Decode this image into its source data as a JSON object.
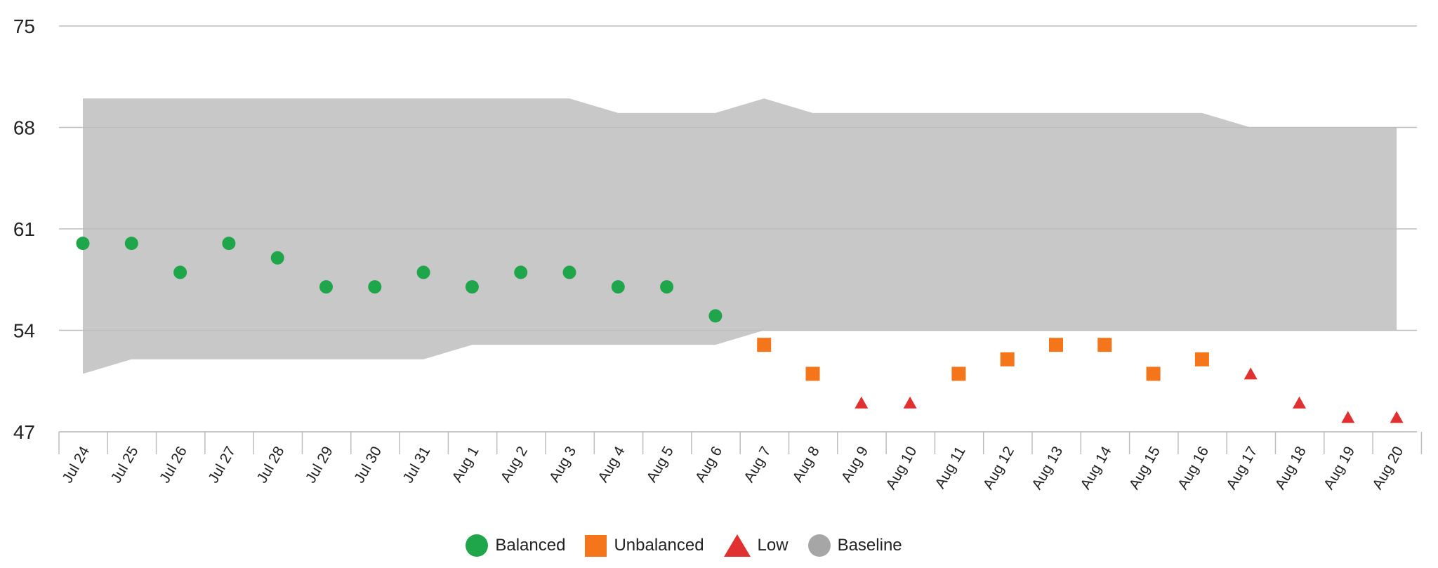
{
  "chart_data": {
    "type": "scatter",
    "title": "",
    "xlabel": "",
    "ylabel": "",
    "ylim": [
      47,
      75
    ],
    "yticks": [
      47,
      54,
      61,
      68,
      75
    ],
    "grid": true,
    "legend_position": "bottom",
    "categories": [
      "Jul 24",
      "Jul 25",
      "Jul 26",
      "Jul 27",
      "Jul 28",
      "Jul 29",
      "Jul 30",
      "Jul 31",
      "Aug 1",
      "Aug 2",
      "Aug 3",
      "Aug 4",
      "Aug 5",
      "Aug 6",
      "Aug 7",
      "Aug 8",
      "Aug 9",
      "Aug 10",
      "Aug 11",
      "Aug 12",
      "Aug 13",
      "Aug 14",
      "Aug 15",
      "Aug 16",
      "Aug 17",
      "Aug 18",
      "Aug 19",
      "Aug 20"
    ],
    "baseline": {
      "name": "Baseline",
      "color": "#c8c8c8",
      "upper": [
        70,
        70,
        70,
        70,
        70,
        70,
        70,
        70,
        70,
        70,
        70,
        69,
        69,
        69,
        70,
        69,
        69,
        69,
        69,
        69,
        69,
        69,
        69,
        69,
        68,
        68,
        68,
        68
      ],
      "lower": [
        51,
        52,
        52,
        52,
        52,
        52,
        52,
        52,
        53,
        53,
        53,
        53,
        53,
        53,
        54,
        54,
        54,
        54,
        54,
        54,
        54,
        54,
        54,
        54,
        54,
        54,
        54,
        54
      ]
    },
    "series": [
      {
        "name": "Balanced",
        "marker": "circle",
        "color": "#1fa64a",
        "x": [
          "Jul 24",
          "Jul 25",
          "Jul 26",
          "Jul 27",
          "Jul 28",
          "Jul 29",
          "Jul 30",
          "Jul 31",
          "Aug 1",
          "Aug 2",
          "Aug 3",
          "Aug 4",
          "Aug 5",
          "Aug 6"
        ],
        "values": [
          60,
          60,
          58,
          60,
          59,
          57,
          57,
          58,
          57,
          58,
          58,
          57,
          57,
          55
        ]
      },
      {
        "name": "Unbalanced",
        "marker": "square",
        "color": "#f5761a",
        "x": [
          "Aug 7",
          "Aug 8",
          "Aug 11",
          "Aug 12",
          "Aug 13",
          "Aug 14",
          "Aug 15",
          "Aug 16"
        ],
        "values": [
          53,
          51,
          51,
          52,
          53,
          53,
          51,
          52
        ]
      },
      {
        "name": "Low",
        "marker": "triangle",
        "color": "#e03030",
        "x": [
          "Aug 9",
          "Aug 10",
          "Aug 17",
          "Aug 18",
          "Aug 19",
          "Aug 20"
        ],
        "values": [
          49,
          49,
          51,
          49,
          48,
          48
        ]
      }
    ]
  },
  "legend": {
    "items": [
      {
        "label": "Balanced",
        "color": "#1fa64a",
        "icon": "circle-icon"
      },
      {
        "label": "Unbalanced",
        "color": "#f5761a",
        "icon": "square-icon"
      },
      {
        "label": "Low",
        "color": "#e03030",
        "icon": "triangle-icon"
      },
      {
        "label": "Baseline",
        "color": "#a6a6a6",
        "icon": "circle-icon"
      }
    ]
  }
}
